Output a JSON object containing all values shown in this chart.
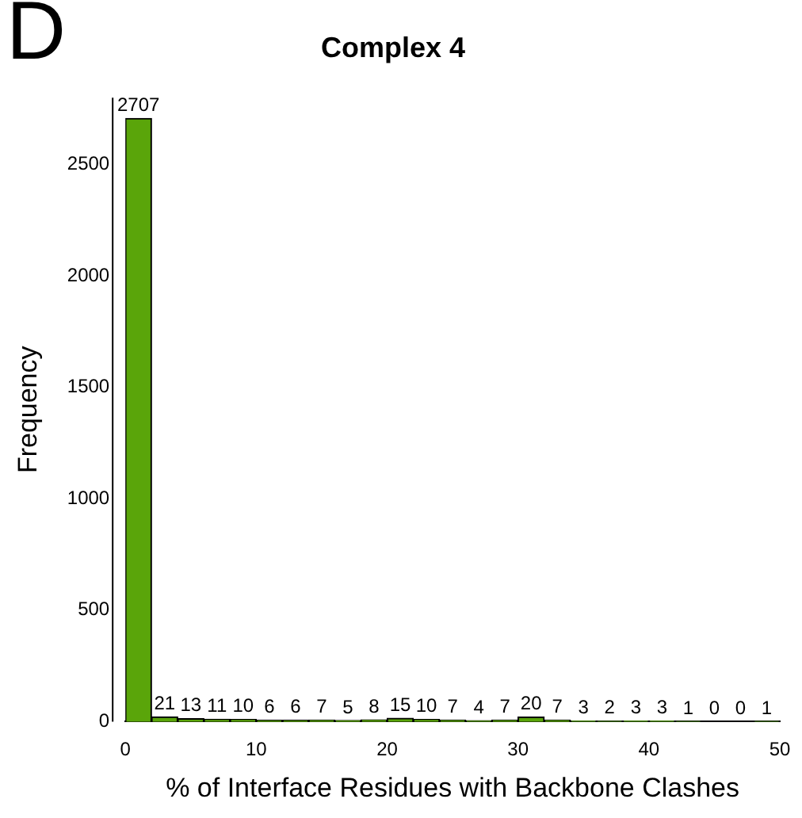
{
  "chart_data": {
    "type": "histogram",
    "title": "Complex 4",
    "xlabel": "% of Interface Residues with Backbone Clashes",
    "ylabel": "Frequency",
    "annotations": [
      "D"
    ],
    "bins": [
      0,
      2,
      4,
      6,
      8,
      10,
      12,
      14,
      16,
      18,
      20,
      22,
      24,
      26,
      28,
      30,
      32,
      34,
      36,
      38,
      40,
      42,
      44,
      46,
      48,
      50
    ],
    "values": [
      2707,
      21,
      13,
      11,
      10,
      6,
      6,
      7,
      5,
      8,
      15,
      10,
      7,
      4,
      7,
      20,
      7,
      3,
      2,
      3,
      3,
      1,
      0,
      0,
      1
    ],
    "color": "#5aa50a",
    "data_labels": true,
    "grid": false,
    "legend": false,
    "xlim": [
      0,
      50
    ],
    "xticks": [
      0,
      10,
      20,
      30,
      40,
      50
    ],
    "ylim": [
      0,
      2800
    ],
    "yticks": [
      0,
      500,
      1000,
      1500,
      2000,
      2500
    ]
  }
}
